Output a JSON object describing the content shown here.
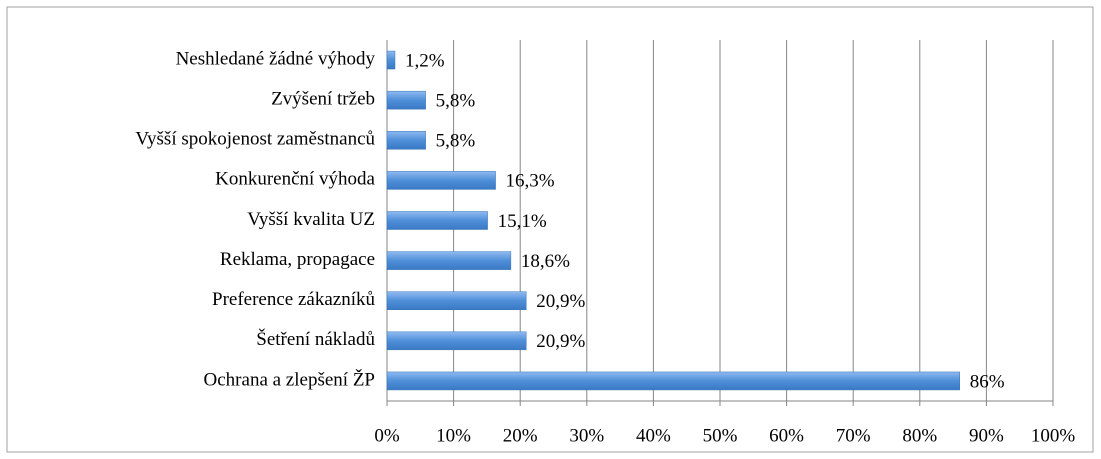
{
  "chart_data": {
    "type": "barh",
    "categories": [
      "Neshledané žádné výhody",
      "Zvýšení tržeb",
      "Vyšší spokojenost zaměstnanců",
      "Konkurenční výhoda",
      "Vyšší kvalita UZ",
      "Reklama, propagace",
      "Preference zákazníků",
      "Šetření nákladů",
      "Ochrana a zlepšení ŽP"
    ],
    "values": [
      1.2,
      5.8,
      5.8,
      16.3,
      15.1,
      18.6,
      20.9,
      20.9,
      86
    ],
    "value_labels": [
      "1,2%",
      "5,8%",
      "5,8%",
      "16,3%",
      "15,1%",
      "18,6%",
      "20,9%",
      "20,9%",
      "86%"
    ],
    "color": "#4f8fd8",
    "xlim": [
      0,
      100
    ],
    "xticks": [
      {
        "value": 0,
        "label": "0%"
      },
      {
        "value": 10,
        "label": "10%"
      },
      {
        "value": 20,
        "label": "20%"
      },
      {
        "value": 30,
        "label": "30%"
      },
      {
        "value": 40,
        "label": "40%"
      },
      {
        "value": 50,
        "label": "50%"
      },
      {
        "value": 60,
        "label": "60%"
      },
      {
        "value": 70,
        "label": "70%"
      },
      {
        "value": 80,
        "label": "80%"
      },
      {
        "value": 90,
        "label": "90%"
      },
      {
        "value": 100,
        "label": "100%"
      }
    ],
    "grid": true
  }
}
